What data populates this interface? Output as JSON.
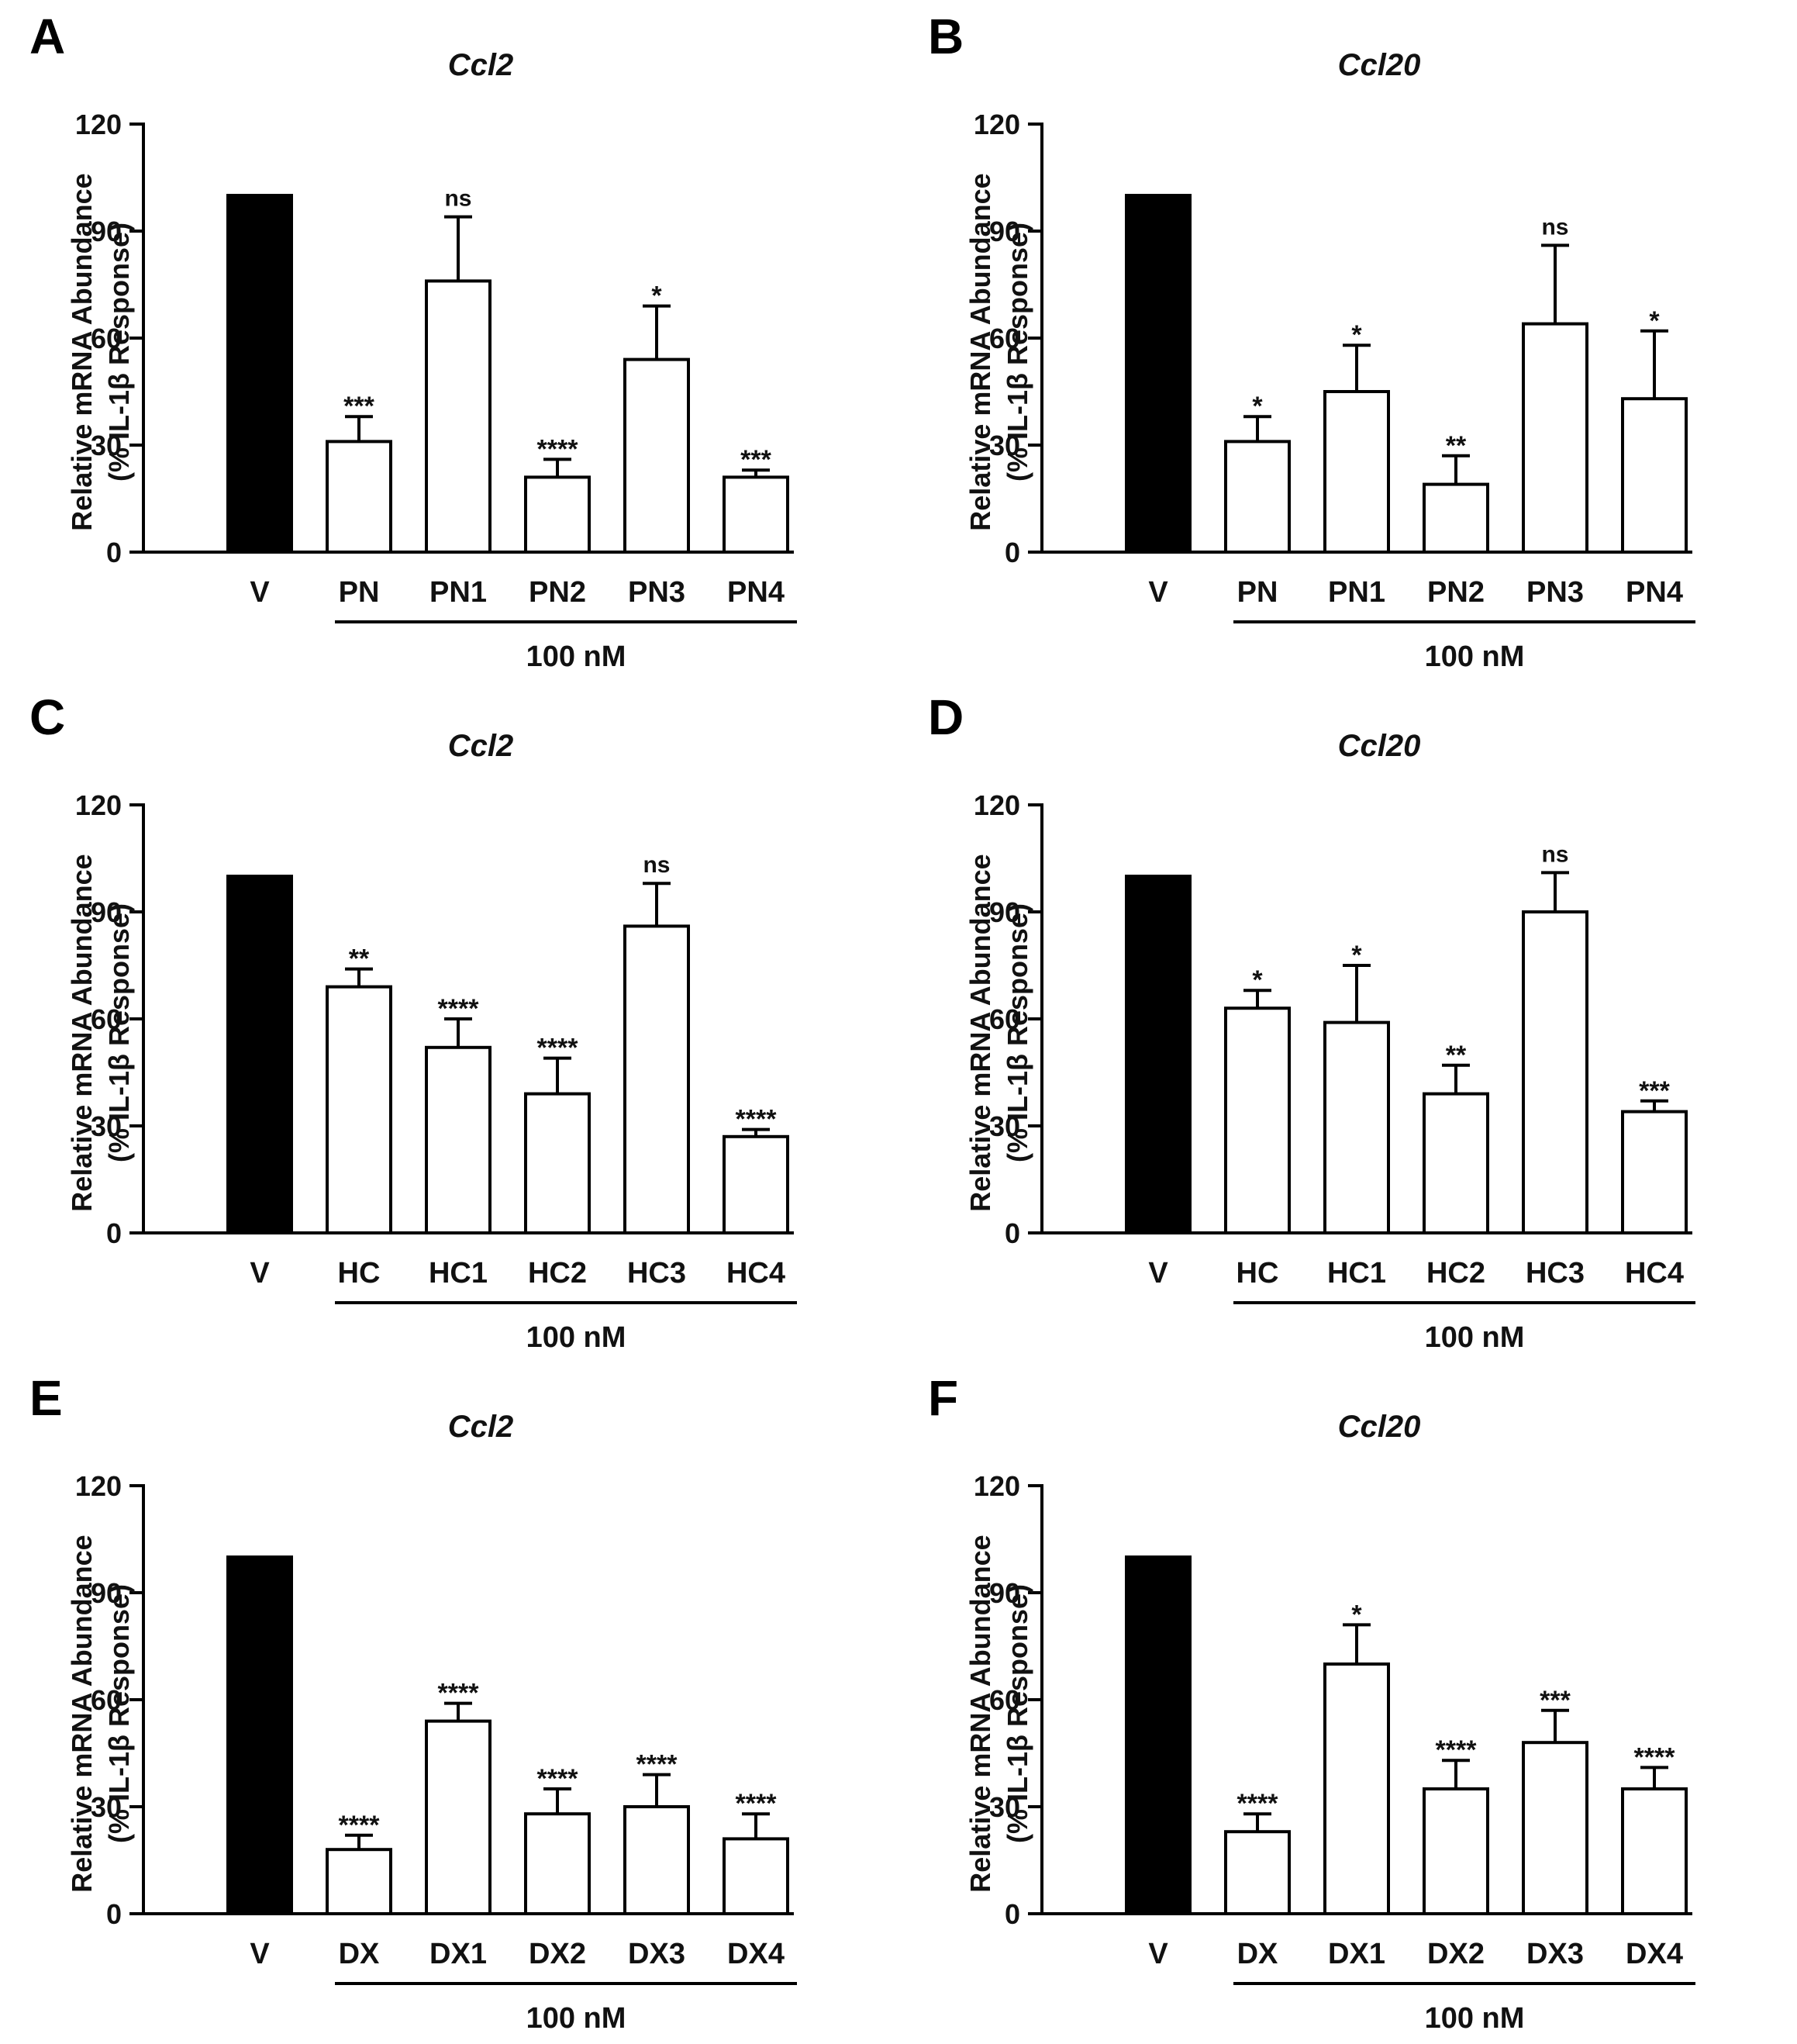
{
  "figure": {
    "panels": [
      {
        "label": "A",
        "chart_ref": 0
      },
      {
        "label": "B",
        "chart_ref": 1
      },
      {
        "label": "C",
        "chart_ref": 2
      },
      {
        "label": "D",
        "chart_ref": 3
      },
      {
        "label": "E",
        "chart_ref": 4
      },
      {
        "label": "F",
        "chart_ref": 5
      }
    ],
    "colors": {
      "vehicle_fill": "#000000",
      "treatment_fill": "#ffffff",
      "stroke": "#000000"
    }
  },
  "chart_data": [
    {
      "type": "bar",
      "panel": "A",
      "title": "Ccl2",
      "ylabel_line1": "Relative mRNA Abundance",
      "ylabel_line2": "(% IL-1β Response)",
      "ylim": [
        0,
        120
      ],
      "yticks": [
        "0",
        "30",
        "60",
        "90",
        "120"
      ],
      "categories": [
        "V",
        "PN",
        "PN1",
        "PN2",
        "PN3",
        "PN4"
      ],
      "values": [
        100,
        31,
        76,
        21,
        54,
        21
      ],
      "errors": [
        0,
        7,
        18,
        5,
        15,
        2
      ],
      "significance": [
        "",
        "***",
        "ns",
        "****",
        "*",
        "***"
      ],
      "group_label": "100 nM"
    },
    {
      "type": "bar",
      "panel": "B",
      "title": "Ccl20",
      "ylabel_line1": "Relative mRNA Abundance",
      "ylabel_line2": "(% IL-1β Response)",
      "ylim": [
        0,
        120
      ],
      "yticks": [
        "0",
        "30",
        "60",
        "90",
        "120"
      ],
      "categories": [
        "V",
        "PN",
        "PN1",
        "PN2",
        "PN3",
        "PN4"
      ],
      "values": [
        100,
        31,
        45,
        19,
        64,
        43
      ],
      "errors": [
        0,
        7,
        13,
        8,
        22,
        19
      ],
      "significance": [
        "",
        "*",
        "*",
        "**",
        "ns",
        "*"
      ],
      "group_label": "100 nM"
    },
    {
      "type": "bar",
      "panel": "C",
      "title": "Ccl2",
      "ylabel_line1": "Relative mRNA Abundance",
      "ylabel_line2": "(% IL-1β Response)",
      "ylim": [
        0,
        120
      ],
      "yticks": [
        "0",
        "30",
        "60",
        "90",
        "120"
      ],
      "categories": [
        "V",
        "HC",
        "HC1",
        "HC2",
        "HC3",
        "HC4"
      ],
      "values": [
        100,
        69,
        52,
        39,
        86,
        27
      ],
      "errors": [
        0,
        5,
        8,
        10,
        12,
        2
      ],
      "significance": [
        "",
        "**",
        "****",
        "****",
        "ns",
        "****"
      ],
      "group_label": "100 nM"
    },
    {
      "type": "bar",
      "panel": "D",
      "title": "Ccl20",
      "ylabel_line1": "Relative mRNA Abundance",
      "ylabel_line2": "(% IL-1β Response)",
      "ylim": [
        0,
        120
      ],
      "yticks": [
        "0",
        "30",
        "60",
        "90",
        "120"
      ],
      "categories": [
        "V",
        "HC",
        "HC1",
        "HC2",
        "HC3",
        "HC4"
      ],
      "values": [
        100,
        63,
        59,
        39,
        90,
        34
      ],
      "errors": [
        0,
        5,
        16,
        8,
        11,
        3
      ],
      "significance": [
        "",
        "*",
        "*",
        "**",
        "ns",
        "***"
      ],
      "group_label": "100 nM"
    },
    {
      "type": "bar",
      "panel": "E",
      "title": "Ccl2",
      "ylabel_line1": "Relative mRNA Abundance",
      "ylabel_line2": "(% IL-1β Response)",
      "ylim": [
        0,
        120
      ],
      "yticks": [
        "0",
        "30",
        "60",
        "90",
        "120"
      ],
      "categories": [
        "V",
        "DX",
        "DX1",
        "DX2",
        "DX3",
        "DX4"
      ],
      "values": [
        100,
        18,
        54,
        28,
        30,
        21
      ],
      "errors": [
        0,
        4,
        5,
        7,
        9,
        7
      ],
      "significance": [
        "",
        "****",
        "****",
        "****",
        "****",
        "****"
      ],
      "group_label": "100 nM"
    },
    {
      "type": "bar",
      "panel": "F",
      "title": "Ccl20",
      "ylabel_line1": "Relative mRNA Abundance",
      "ylabel_line2": "(% IL-1β Response)",
      "ylim": [
        0,
        120
      ],
      "yticks": [
        "0",
        "30",
        "60",
        "90",
        "120"
      ],
      "categories": [
        "V",
        "DX",
        "DX1",
        "DX2",
        "DX3",
        "DX4"
      ],
      "values": [
        100,
        23,
        70,
        35,
        48,
        35
      ],
      "errors": [
        0,
        5,
        11,
        8,
        9,
        6
      ],
      "significance": [
        "",
        "****",
        "*",
        "****",
        "***",
        "****"
      ],
      "group_label": "100 nM"
    }
  ]
}
